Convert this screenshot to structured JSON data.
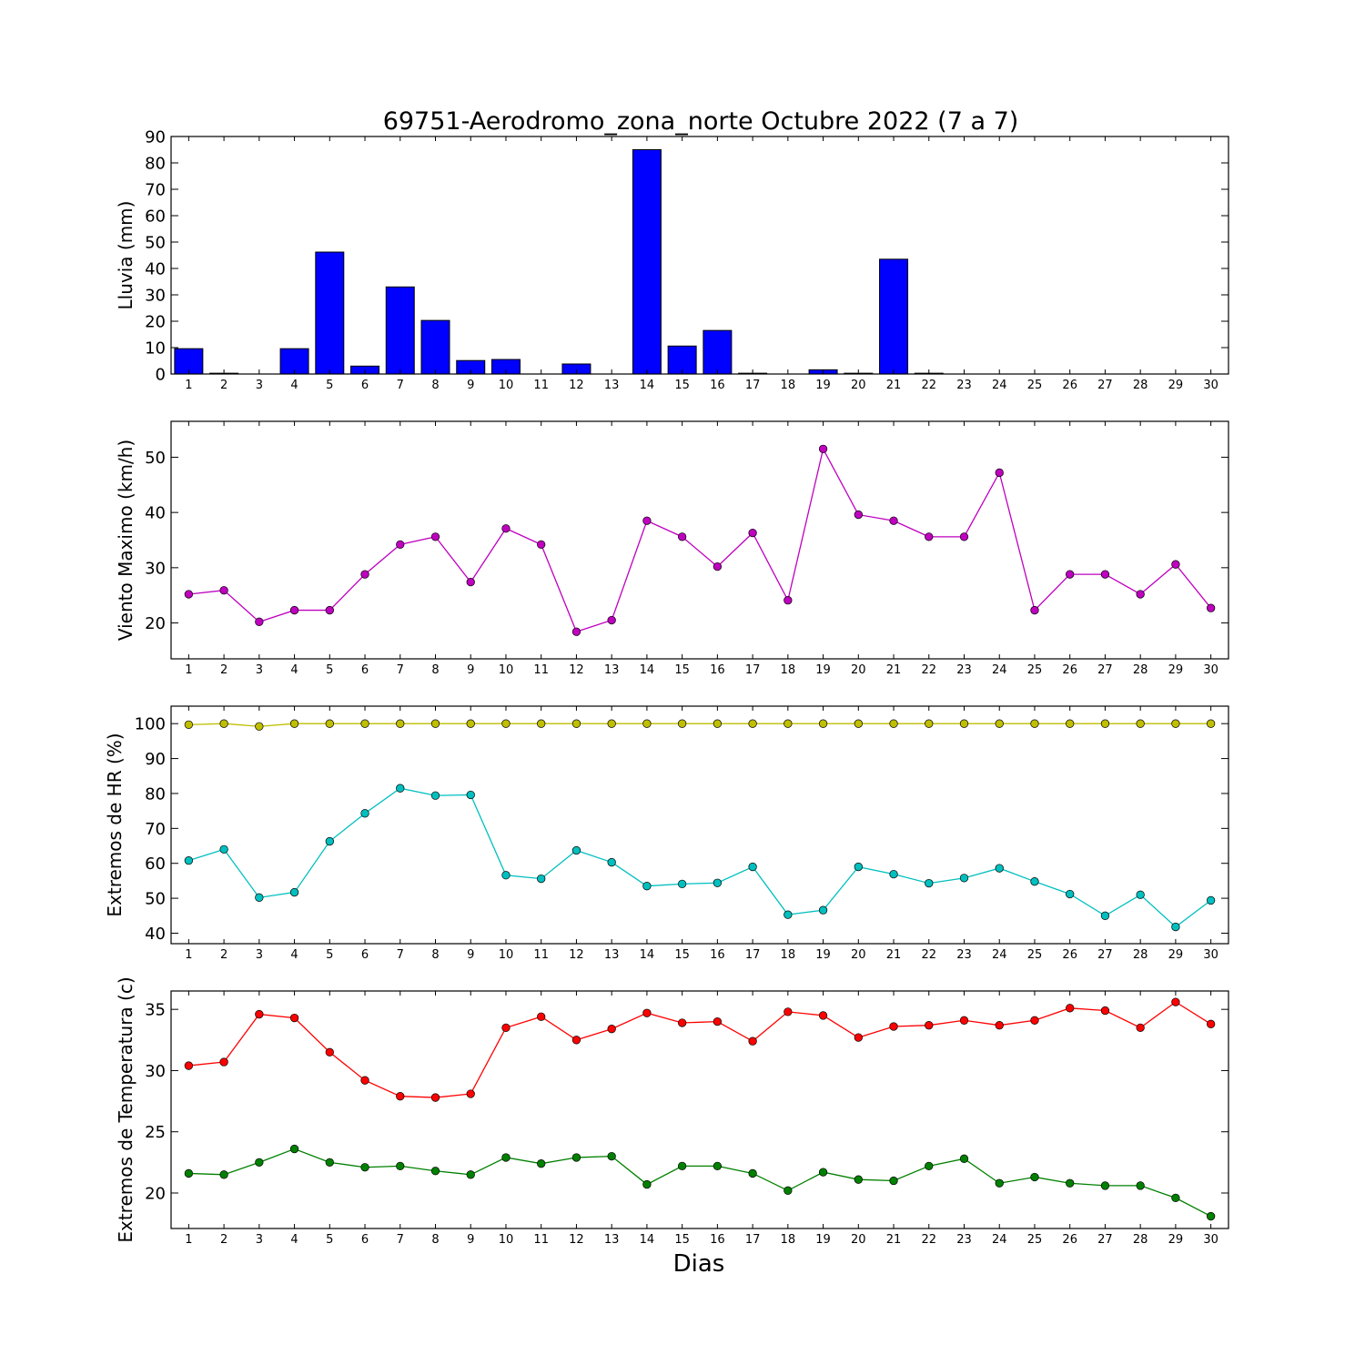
{
  "title": "69751-Aerodromo_zona_norte Octubre 2022  (7 a 7)",
  "xlabel": "Dias",
  "chart_data": [
    {
      "type": "bar",
      "ylabel": "Lluvia (mm)",
      "ylim": [
        0,
        90
      ],
      "yticks": [
        0,
        10,
        20,
        30,
        40,
        50,
        60,
        70,
        80,
        90
      ],
      "x": [
        1,
        2,
        3,
        4,
        5,
        6,
        7,
        8,
        9,
        10,
        11,
        12,
        13,
        14,
        15,
        16,
        17,
        18,
        19,
        20,
        21,
        22,
        23,
        24,
        25,
        26,
        27,
        28,
        29,
        30
      ],
      "series": [
        {
          "color": "#0000ff",
          "values": [
            9.6,
            0.3,
            0,
            9.6,
            46.2,
            3,
            33,
            20.3,
            5.1,
            5.5,
            0,
            3.8,
            0,
            85,
            10.6,
            16.5,
            0.3,
            0,
            1.6,
            0.3,
            43.5,
            0.3,
            0,
            0,
            0,
            0,
            0,
            0,
            0,
            0
          ]
        }
      ]
    },
    {
      "type": "line",
      "ylabel": "Viento Maximo (km/h)",
      "ylim": [
        13.5,
        56.5
      ],
      "yticks": [
        20,
        30,
        40,
        50
      ],
      "x": [
        1,
        2,
        3,
        4,
        5,
        6,
        7,
        8,
        9,
        10,
        11,
        12,
        13,
        14,
        15,
        16,
        17,
        18,
        19,
        20,
        21,
        22,
        23,
        24,
        25,
        26,
        27,
        28,
        29,
        30
      ],
      "series": [
        {
          "color": "#bf00bf",
          "values": [
            25.2,
            25.9,
            20.2,
            22.3,
            22.3,
            28.8,
            34.2,
            35.6,
            27.4,
            37.1,
            34.2,
            18.4,
            20.5,
            38.5,
            35.6,
            30.2,
            36.3,
            24.1,
            51.5,
            39.6,
            38.5,
            35.6,
            35.6,
            47.2,
            22.3,
            28.8,
            28.8,
            25.2,
            30.6,
            22.7
          ]
        }
      ]
    },
    {
      "type": "line",
      "ylabel": "Extremos de HR (%)",
      "ylim": [
        37,
        105
      ],
      "yticks": [
        40,
        50,
        60,
        70,
        80,
        90,
        100
      ],
      "x": [
        1,
        2,
        3,
        4,
        5,
        6,
        7,
        8,
        9,
        10,
        11,
        12,
        13,
        14,
        15,
        16,
        17,
        18,
        19,
        20,
        21,
        22,
        23,
        24,
        25,
        26,
        27,
        28,
        29,
        30
      ],
      "series": [
        {
          "color": "#bfbf00",
          "values": [
            99.7,
            100,
            99.2,
            100,
            100,
            100,
            100,
            100,
            100,
            100,
            100,
            100,
            100,
            100,
            100,
            100,
            100,
            100,
            100,
            100,
            100,
            100,
            100,
            100,
            100,
            100,
            100,
            100,
            100,
            100
          ]
        },
        {
          "color": "#00bfbf",
          "values": [
            60.8,
            64,
            50.2,
            51.7,
            66.3,
            74.3,
            81.5,
            79.4,
            79.6,
            56.6,
            55.6,
            63.7,
            60.3,
            53.5,
            54.1,
            54.4,
            59,
            45.3,
            46.6,
            59,
            56.9,
            54.3,
            55.8,
            58.6,
            54.8,
            51.2,
            45,
            51,
            41.8,
            49.4
          ]
        }
      ]
    },
    {
      "type": "line",
      "ylabel": "Extremos de Temperatura (c)",
      "ylim": [
        17.1,
        36.5
      ],
      "yticks": [
        20,
        25,
        30,
        35
      ],
      "x": [
        1,
        2,
        3,
        4,
        5,
        6,
        7,
        8,
        9,
        10,
        11,
        12,
        13,
        14,
        15,
        16,
        17,
        18,
        19,
        20,
        21,
        22,
        23,
        24,
        25,
        26,
        27,
        28,
        29,
        30
      ],
      "series": [
        {
          "color": "#ff0000",
          "values": [
            30.4,
            30.7,
            34.6,
            34.3,
            31.5,
            29.2,
            27.9,
            27.8,
            28.1,
            33.5,
            34.4,
            32.5,
            33.4,
            34.7,
            33.9,
            34,
            32.4,
            34.8,
            34.5,
            32.7,
            33.6,
            33.7,
            34.1,
            33.7,
            34.1,
            35.1,
            34.9,
            33.5,
            35.6,
            33.8
          ]
        },
        {
          "color": "#008000",
          "values": [
            21.6,
            21.5,
            22.5,
            23.6,
            22.5,
            22.1,
            22.2,
            21.8,
            21.5,
            22.9,
            22.4,
            22.9,
            23,
            20.7,
            22.2,
            22.2,
            21.6,
            20.2,
            21.7,
            21.1,
            21,
            22.2,
            22.8,
            20.8,
            21.3,
            20.8,
            20.6,
            20.6,
            19.6,
            18.1
          ]
        }
      ]
    }
  ]
}
